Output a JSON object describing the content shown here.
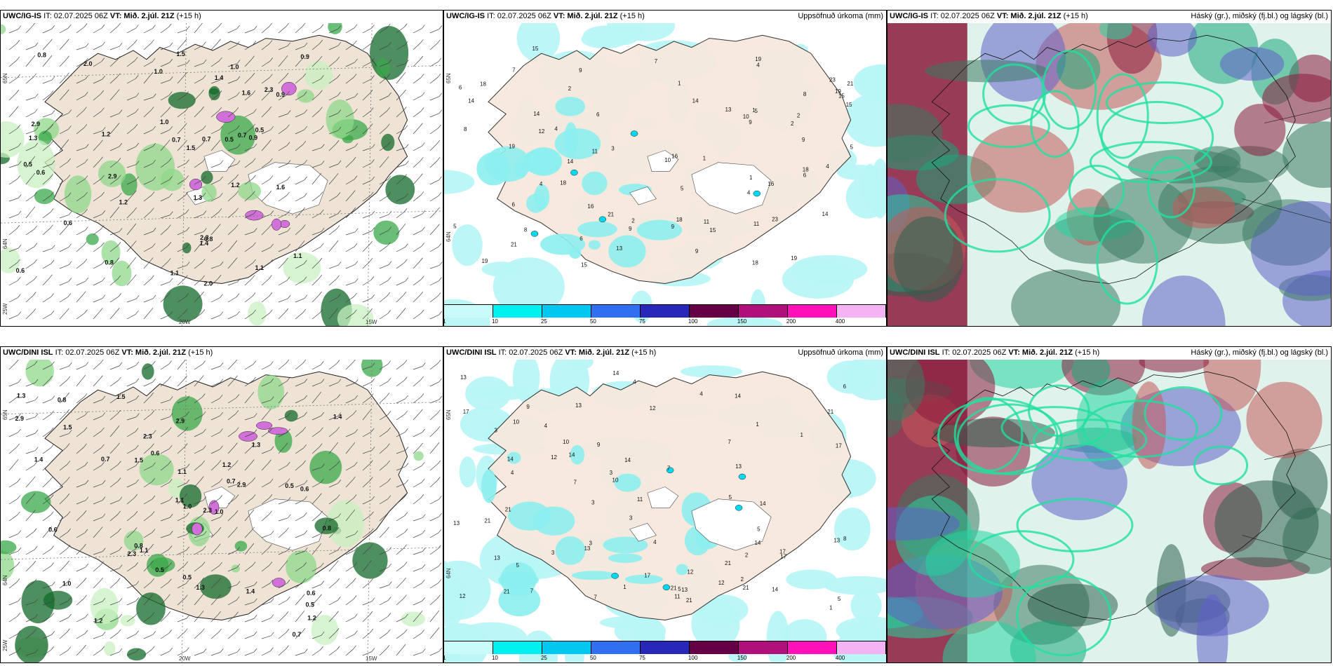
{
  "panels": [
    {
      "model": "UWC/IG-IS",
      "meta": "IT: 02.07.2025 06Z",
      "vt_label": "VT:",
      "vt": "Mið. 2.júl. 21Z",
      "lead": "(+15 h)",
      "right": ""
    },
    {
      "model": "UWC/IG-IS",
      "meta": "IT: 02.07.2025 06Z",
      "vt_label": "VT:",
      "vt": "Mið. 2.júl. 21Z",
      "lead": "(+15 h)",
      "right": "Uppsöfnuð úrkoma (mm)"
    },
    {
      "model": "UWC/IG-IS",
      "meta": "IT: 02.07.2025 06Z",
      "vt_label": "VT:",
      "vt": "Mið. 2.júl. 21Z",
      "lead": "(+15 h)",
      "right": "Háský (gr.), miðský (fj.bl.) og lágský (bl.)"
    },
    {
      "model": "UWC/DINI ISL",
      "meta": "IT: 02.07.2025 06Z",
      "vt_label": "VT:",
      "vt": "Mið. 2.júl. 21Z",
      "lead": "(+15 h)",
      "right": ""
    },
    {
      "model": "UWC/DINI ISL",
      "meta": "IT: 02.07.2025 06Z",
      "vt_label": "VT:",
      "vt": "Mið. 2.júl. 21Z",
      "lead": "(+15 h)",
      "right": "Uppsöfnuð úrkoma (mm)"
    },
    {
      "model": "UWC/DINI ISL",
      "meta": "IT: 02.07.2025 06Z",
      "vt_label": "VT:",
      "vt": "Mið. 2.júl. 21Z",
      "lead": "(+15 h)",
      "right": "Háský (gr.), miðský (fj.bl.) og lágský (bl.)"
    }
  ],
  "axes": {
    "lat_top": "65N",
    "lat_bottom": "64N",
    "lon_left": "25W",
    "lon_mid": "20W",
    "lon_right": "15W"
  },
  "colorbar": {
    "labels": [
      "1",
      "10",
      "25",
      "50",
      "75",
      "100",
      "150",
      "200",
      "400"
    ],
    "colors": [
      "#c9fbfb",
      "#00f0f0",
      "#00c8f0",
      "#3070f0",
      "#2828b8",
      "#660044",
      "#b0107a",
      "#ff10b8",
      "#f4b4f4"
    ]
  },
  "precip_values_top": [
    "1",
    "2",
    "3",
    "4",
    "5",
    "6",
    "7",
    "8",
    "9",
    "10",
    "11",
    "12",
    "13",
    "14",
    "15",
    "16",
    "18",
    "19",
    "21",
    "23"
  ],
  "precip_values_bottom": [
    "1",
    "2",
    "3",
    "4",
    "5",
    "6",
    "7",
    "8",
    "9",
    "10",
    "11",
    "12",
    "13",
    "14",
    "17",
    "21"
  ],
  "rate_values_top": [
    "0.5",
    "0.6",
    "0.7",
    "0.8",
    "0.9",
    "1.0",
    "1.1",
    "1.2",
    "1.3",
    "1.4",
    "1.5",
    "1.6",
    "2.0",
    "2.3",
    "2.9"
  ],
  "rate_values_bottom": [
    "0.5",
    "0.6",
    "0.7",
    "0.8",
    "1.0",
    "1.1",
    "1.2",
    "1.3",
    "1.4",
    "1.5",
    "2.3",
    "2.9"
  ]
}
